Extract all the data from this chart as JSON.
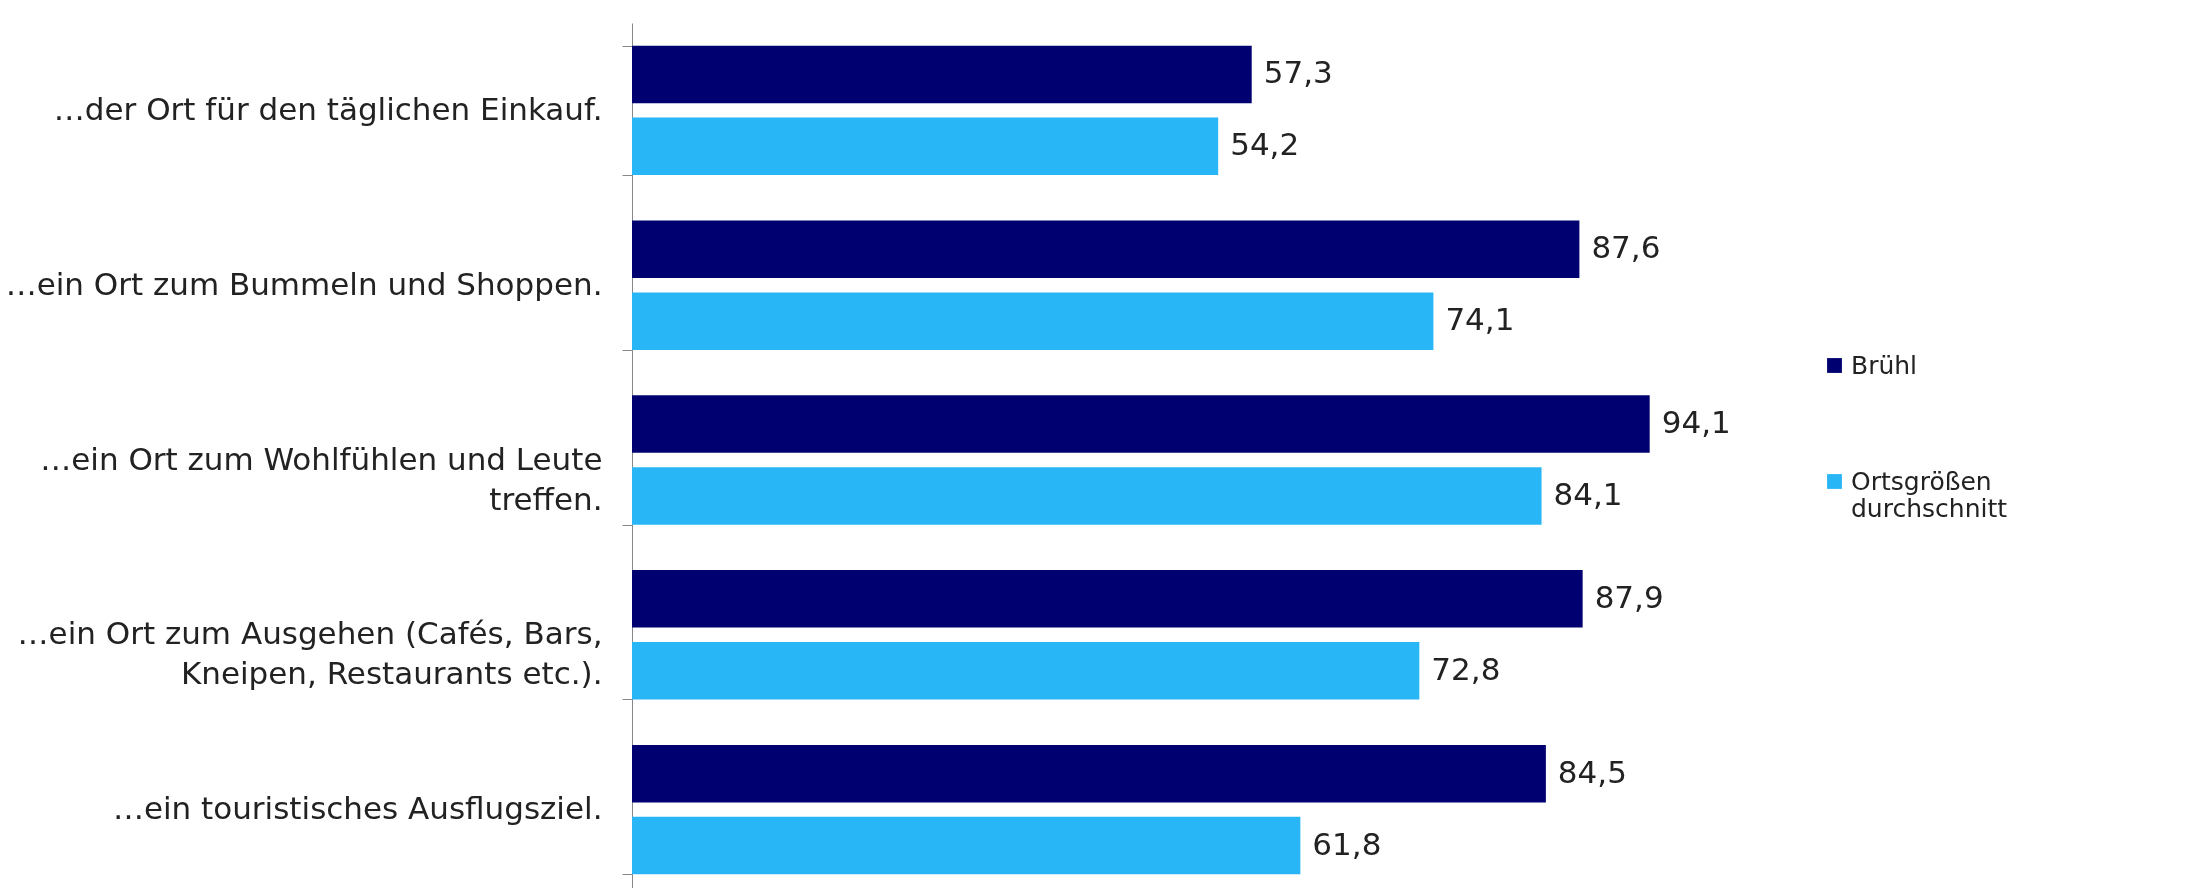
{
  "chart_data": {
    "type": "bar",
    "orientation": "horizontal",
    "categories": [
      "…der Ort für den täglichen Einkauf.",
      "…ein Ort zum Bummeln und Shoppen.",
      "…ein Ort zum Wohlfühlen und Leute treffen.",
      "…ein Ort zum Ausgehen (Cafés, Bars, Kneipen, Restaurants etc.).",
      "…ein touristisches Ausflugsziel."
    ],
    "series": [
      {
        "name": "Brühl",
        "color": "#000070",
        "values": [
          57.3,
          87.6,
          94.1,
          87.9,
          84.5
        ],
        "value_labels": [
          "57,3",
          "87,6",
          "94,1",
          "87,9",
          "84,5"
        ]
      },
      {
        "name": "Ortsgrößen durchschnitt",
        "color": "#29b6f6",
        "values": [
          54.2,
          74.1,
          84.1,
          72.8,
          61.8
        ],
        "value_labels": [
          "54,2",
          "74,1",
          "84,1",
          "72,8",
          "61,8"
        ]
      }
    ],
    "tick_labels": "y",
    "legend": "right",
    "grid": false
  }
}
